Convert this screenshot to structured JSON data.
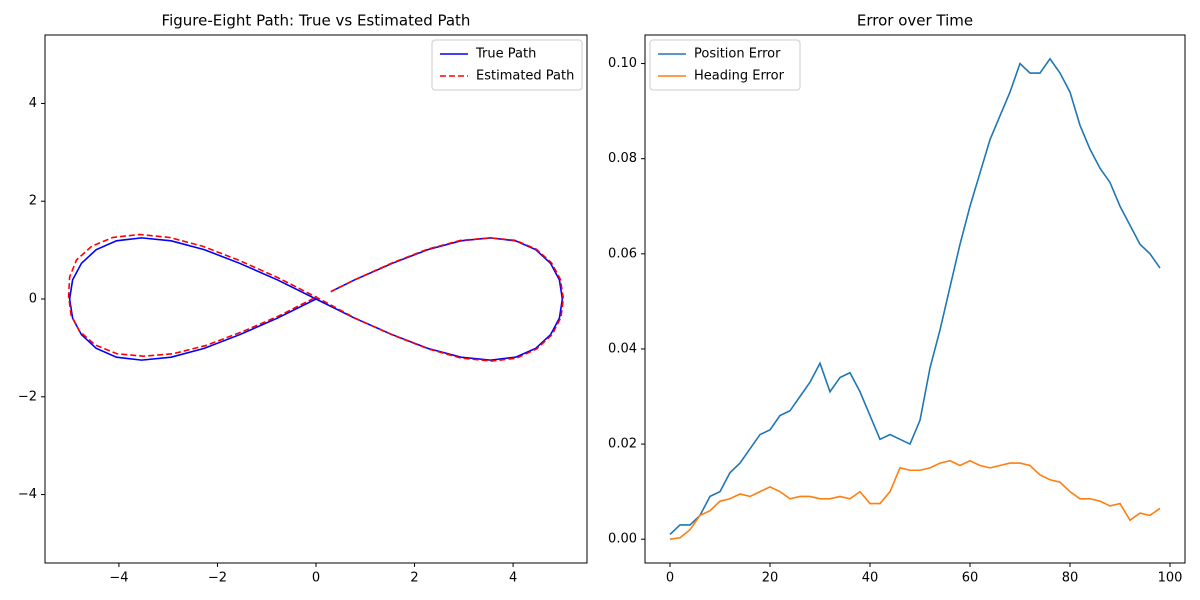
{
  "chart_data": [
    {
      "type": "line",
      "title": "Figure-Eight Path: True vs Estimated Path",
      "legend": "upper right",
      "grid": false,
      "xlim": [
        -5.5,
        5.5
      ],
      "ylim": [
        -5.4,
        5.4
      ],
      "xticks": [
        {
          "value": -4,
          "label": "−4"
        },
        {
          "value": -2,
          "label": "−2"
        },
        0,
        2,
        4
      ],
      "yticks": [
        {
          "value": -4,
          "label": "−4"
        },
        {
          "value": -2,
          "label": "−2"
        },
        0,
        2,
        4
      ],
      "series": [
        {
          "name": "True Path",
          "color": "#0000ff",
          "linestyle": "solid",
          "x": [
            0.3,
            0.78,
            1.55,
            2.27,
            2.94,
            3.54,
            4.05,
            4.46,
            4.76,
            4.94,
            5,
            4.94,
            4.76,
            4.46,
            4.05,
            3.54,
            2.94,
            2.27,
            1.55,
            0.78,
            0,
            -0.78,
            -1.55,
            -2.27,
            -2.94,
            -3.54,
            -4.05,
            -4.46,
            -4.76,
            -4.94,
            -5,
            -4.94,
            -4.76,
            -4.46,
            -4.05,
            -3.54,
            -2.94,
            -2.27,
            -1.55,
            -0.78,
            0
          ],
          "values": [
            0.15,
            0.39,
            0.73,
            1.01,
            1.19,
            1.25,
            1.19,
            1.01,
            0.73,
            0.39,
            0,
            -0.39,
            -0.73,
            -1.01,
            -1.19,
            -1.25,
            -1.19,
            -1.01,
            -0.73,
            -0.39,
            0,
            0.39,
            0.73,
            1.01,
            1.19,
            1.25,
            1.19,
            1.01,
            0.73,
            0.39,
            0,
            -0.39,
            -0.73,
            -1.01,
            -1.19,
            -1.25,
            -1.19,
            -1.01,
            -0.73,
            -0.39,
            0
          ]
        },
        {
          "name": "Estimated Path",
          "color": "#ff0000",
          "linestyle": "dashed",
          "x": [
            0.3,
            0.78,
            1.55,
            2.27,
            2.94,
            3.54,
            4.05,
            4.47,
            4.78,
            4.96,
            5.02,
            4.97,
            4.79,
            4.48,
            4.07,
            3.56,
            2.95,
            2.28,
            1.56,
            0.79,
            0.02,
            -0.76,
            -1.56,
            -2.3,
            -2.98,
            -3.58,
            -4.12,
            -4.55,
            -4.86,
            -5.0,
            -5.02,
            -4.97,
            -4.8,
            -4.48,
            -4.04,
            -3.5,
            -2.9,
            -2.23,
            -1.5,
            -0.74,
            0.02
          ],
          "values": [
            0.15,
            0.39,
            0.74,
            1.02,
            1.2,
            1.25,
            1.2,
            1.02,
            0.74,
            0.4,
            0.01,
            -0.38,
            -0.73,
            -1.02,
            -1.21,
            -1.27,
            -1.21,
            -1.02,
            -0.74,
            -0.39,
            0.03,
            0.43,
            0.79,
            1.08,
            1.26,
            1.32,
            1.26,
            1.08,
            0.8,
            0.45,
            0.05,
            -0.33,
            -0.66,
            -0.94,
            -1.12,
            -1.17,
            -1.12,
            -0.95,
            -0.67,
            -0.34,
            0.05
          ]
        }
      ]
    },
    {
      "type": "line",
      "title": "Error over Time",
      "legend": "upper left",
      "grid": false,
      "xlim": [
        -5,
        103
      ],
      "ylim": [
        -0.005,
        0.106
      ],
      "xticks": [
        0,
        20,
        40,
        60,
        80,
        100
      ],
      "yticks": [
        {
          "value": 0,
          "label": "0.00"
        },
        {
          "value": 0.02,
          "label": "0.02"
        },
        {
          "value": 0.04,
          "label": "0.04"
        },
        {
          "value": 0.06,
          "label": "0.06"
        },
        {
          "value": 0.08,
          "label": "0.08"
        },
        {
          "value": 0.1,
          "label": "0.10"
        }
      ],
      "x": [
        0,
        2,
        4,
        6,
        8,
        10,
        12,
        14,
        16,
        18,
        20,
        22,
        24,
        26,
        28,
        30,
        32,
        34,
        36,
        38,
        40,
        42,
        44,
        46,
        48,
        50,
        52,
        54,
        56,
        58,
        60,
        62,
        64,
        66,
        68,
        70,
        72,
        74,
        76,
        78,
        80,
        82,
        84,
        86,
        88,
        90,
        92,
        94,
        96,
        98
      ],
      "series": [
        {
          "name": "Position Error",
          "color": "#1f77b4",
          "linestyle": "solid",
          "values": [
            0.001,
            0.003,
            0.003,
            0.005,
            0.009,
            0.01,
            0.014,
            0.016,
            0.019,
            0.022,
            0.023,
            0.026,
            0.027,
            0.03,
            0.033,
            0.037,
            0.031,
            0.034,
            0.035,
            0.031,
            0.026,
            0.021,
            0.022,
            0.021,
            0.02,
            0.025,
            0.036,
            0.044,
            0.053,
            0.062,
            0.07,
            0.077,
            0.084,
            0.089,
            0.094,
            0.1,
            0.098,
            0.098,
            0.101,
            0.098,
            0.094,
            0.087,
            0.082,
            0.078,
            0.075,
            0.07,
            0.066,
            0.062,
            0.06,
            0.057
          ]
        },
        {
          "name": "Heading Error",
          "color": "#ff7f0e",
          "linestyle": "solid",
          "values": [
            0,
            0.0003,
            0.002,
            0.005,
            0.006,
            0.008,
            0.0085,
            0.0095,
            0.009,
            0.01,
            0.011,
            0.01,
            0.0085,
            0.009,
            0.009,
            0.0085,
            0.0085,
            0.009,
            0.0085,
            0.01,
            0.0075,
            0.0075,
            0.01,
            0.015,
            0.0145,
            0.0145,
            0.015,
            0.016,
            0.0165,
            0.0155,
            0.0165,
            0.0155,
            0.015,
            0.0155,
            0.016,
            0.016,
            0.0155,
            0.0135,
            0.0125,
            0.012,
            0.01,
            0.0085,
            0.0085,
            0.008,
            0.007,
            0.0075,
            0.004,
            0.0055,
            0.005,
            0.0065
          ]
        }
      ]
    }
  ]
}
